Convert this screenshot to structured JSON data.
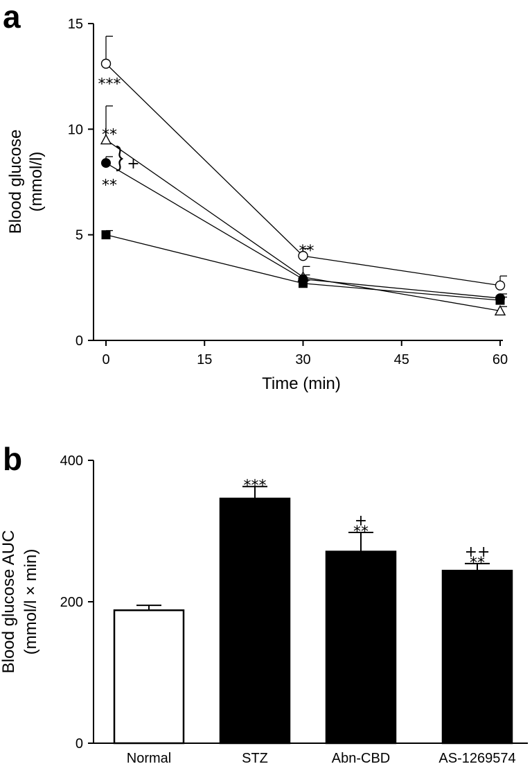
{
  "chart_data": [
    {
      "panel": "a",
      "type": "line",
      "xlabel": "Time (min)",
      "ylabel": [
        "Blood glucose",
        "(mmol/l)"
      ],
      "xlim": [
        0,
        60
      ],
      "ylim": [
        0,
        15
      ],
      "xticks": [
        0,
        15,
        30,
        45,
        60
      ],
      "yticks": [
        0,
        5,
        10,
        15
      ],
      "x": [
        0,
        30,
        60
      ],
      "series": [
        {
          "marker": "open-circle",
          "values": [
            13.1,
            4.0,
            2.6
          ],
          "errors": [
            1.3,
            0.35,
            0.45
          ]
        },
        {
          "marker": "open-triangle",
          "values": [
            9.5,
            3.0,
            1.4
          ],
          "errors": [
            1.6,
            0.5,
            0.2
          ]
        },
        {
          "marker": "filled-circle",
          "values": [
            8.4,
            2.9,
            2.0
          ],
          "errors": [
            0.3,
            0.2,
            0.2
          ]
        },
        {
          "marker": "filled-square",
          "values": [
            5.0,
            2.7,
            1.9
          ],
          "errors": [
            0.2,
            0.15,
            0.15
          ]
        }
      ],
      "annotations": [
        {
          "text": "***",
          "x": 0,
          "y": 12.3
        },
        {
          "text": "**",
          "x": 0,
          "y": 9.9
        },
        {
          "text": "+",
          "x": 1.0,
          "y": 8.4
        },
        {
          "text": "**",
          "x": 0,
          "y": 7.5
        },
        {
          "text": "**",
          "x": 30,
          "y": 4.4
        }
      ]
    },
    {
      "panel": "b",
      "type": "bar",
      "ylabel": [
        "Blood glucose AUC",
        "(mmol/l × min)"
      ],
      "ylim": [
        0,
        400
      ],
      "yticks": [
        0,
        200,
        400
      ],
      "categories": [
        "Normal",
        "STZ",
        "Abn-CBD",
        "AS-1269574"
      ],
      "values": [
        188,
        346,
        271,
        244
      ],
      "errors": [
        7,
        17,
        27,
        10
      ],
      "fill": [
        "#ffffff",
        "#000000",
        "#000000",
        "#000000"
      ],
      "annotations": [
        {
          "category": "STZ",
          "lines": [
            "***"
          ]
        },
        {
          "category": "Abn-CBD",
          "lines": [
            "+",
            "**"
          ]
        },
        {
          "category": "AS-1269574",
          "lines": [
            "++",
            "**"
          ]
        }
      ]
    }
  ]
}
